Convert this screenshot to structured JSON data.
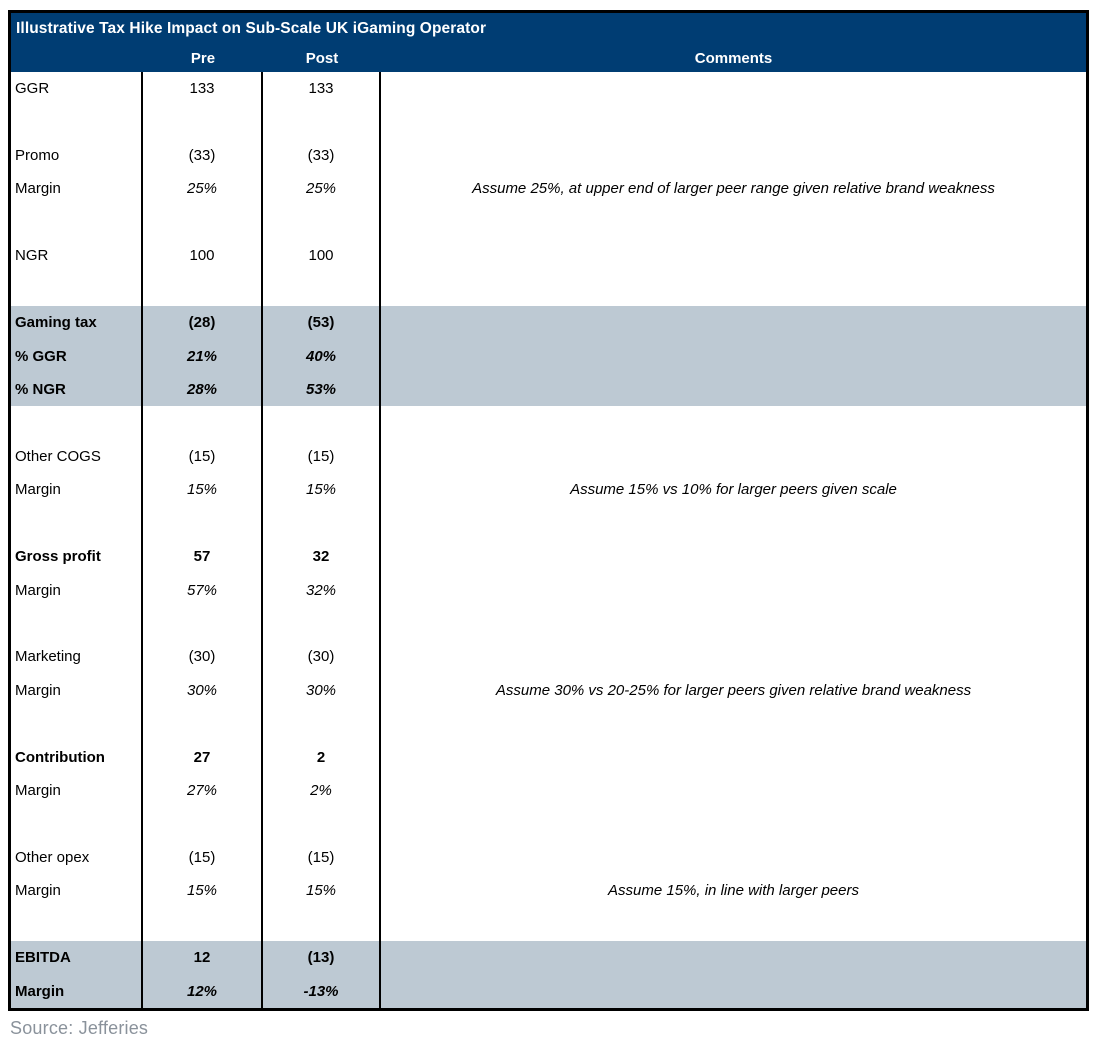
{
  "table": {
    "title": "Illustrative Tax Hike Impact on Sub-Scale UK iGaming Operator",
    "columns": [
      "Pre",
      "Post",
      "Comments"
    ],
    "rows": [
      {
        "label": "GGR",
        "pre": "133",
        "post": "133",
        "comment": "",
        "label_style": "normal",
        "value_style": "normal",
        "highlight": false
      },
      {
        "label": "",
        "pre": "",
        "post": "",
        "comment": "",
        "label_style": "normal",
        "value_style": "normal",
        "highlight": false
      },
      {
        "label": "Promo",
        "pre": "(33)",
        "post": "(33)",
        "comment": "",
        "label_style": "normal",
        "value_style": "normal",
        "highlight": false
      },
      {
        "label": "Margin",
        "pre": "25%",
        "post": "25%",
        "comment": "Assume 25%, at upper end of larger peer range given relative brand weakness",
        "label_style": "normal",
        "value_style": "italic",
        "highlight": false
      },
      {
        "label": "",
        "pre": "",
        "post": "",
        "comment": "",
        "label_style": "normal",
        "value_style": "normal",
        "highlight": false
      },
      {
        "label": "NGR",
        "pre": "100",
        "post": "100",
        "comment": "",
        "label_style": "normal",
        "value_style": "normal",
        "highlight": false
      },
      {
        "label": "",
        "pre": "",
        "post": "",
        "comment": "",
        "label_style": "normal",
        "value_style": "normal",
        "highlight": false
      },
      {
        "label": "Gaming tax",
        "pre": "(28)",
        "post": "(53)",
        "comment": "",
        "label_style": "bold",
        "value_style": "bold",
        "highlight": true
      },
      {
        "label": "% GGR",
        "pre": "21%",
        "post": "40%",
        "comment": "",
        "label_style": "bold",
        "value_style": "bold-italic",
        "highlight": true
      },
      {
        "label": "% NGR",
        "pre": "28%",
        "post": "53%",
        "comment": "",
        "label_style": "bold",
        "value_style": "bold-italic",
        "highlight": true
      },
      {
        "label": "",
        "pre": "",
        "post": "",
        "comment": "",
        "label_style": "normal",
        "value_style": "normal",
        "highlight": false
      },
      {
        "label": "Other COGS",
        "pre": "(15)",
        "post": "(15)",
        "comment": "",
        "label_style": "normal",
        "value_style": "normal",
        "highlight": false
      },
      {
        "label": "Margin",
        "pre": "15%",
        "post": "15%",
        "comment": "Assume 15% vs 10% for larger peers given scale",
        "label_style": "normal",
        "value_style": "italic",
        "highlight": false
      },
      {
        "label": "",
        "pre": "",
        "post": "",
        "comment": "",
        "label_style": "normal",
        "value_style": "normal",
        "highlight": false
      },
      {
        "label": "Gross profit",
        "pre": "57",
        "post": "32",
        "comment": "",
        "label_style": "bold",
        "value_style": "bold",
        "highlight": false
      },
      {
        "label": "Margin",
        "pre": "57%",
        "post": "32%",
        "comment": "",
        "label_style": "normal",
        "value_style": "italic",
        "highlight": false
      },
      {
        "label": "",
        "pre": "",
        "post": "",
        "comment": "",
        "label_style": "normal",
        "value_style": "normal",
        "highlight": false
      },
      {
        "label": "Marketing",
        "pre": "(30)",
        "post": "(30)",
        "comment": "",
        "label_style": "normal",
        "value_style": "normal",
        "highlight": false
      },
      {
        "label": "Margin",
        "pre": "30%",
        "post": "30%",
        "comment": "Assume 30% vs 20-25% for larger peers given relative brand weakness",
        "label_style": "normal",
        "value_style": "italic",
        "highlight": false
      },
      {
        "label": "",
        "pre": "",
        "post": "",
        "comment": "",
        "label_style": "normal",
        "value_style": "normal",
        "highlight": false
      },
      {
        "label": "Contribution",
        "pre": "27",
        "post": "2",
        "comment": "",
        "label_style": "bold",
        "value_style": "bold",
        "highlight": false
      },
      {
        "label": "Margin",
        "pre": "27%",
        "post": "2%",
        "comment": "",
        "label_style": "normal",
        "value_style": "italic",
        "highlight": false
      },
      {
        "label": "",
        "pre": "",
        "post": "",
        "comment": "",
        "label_style": "normal",
        "value_style": "normal",
        "highlight": false
      },
      {
        "label": "Other opex",
        "pre": "(15)",
        "post": "(15)",
        "comment": "",
        "label_style": "normal",
        "value_style": "normal",
        "highlight": false
      },
      {
        "label": "Margin",
        "pre": "15%",
        "post": "15%",
        "comment": "Assume 15%, in line with larger peers",
        "label_style": "normal",
        "value_style": "italic",
        "highlight": false
      },
      {
        "label": "",
        "pre": "",
        "post": "",
        "comment": "",
        "label_style": "normal",
        "value_style": "normal",
        "highlight": false
      },
      {
        "label": "EBITDA",
        "pre": "12",
        "post": "(13)",
        "comment": "",
        "label_style": "bold",
        "value_style": "bold",
        "highlight": true
      },
      {
        "label": "Margin",
        "pre": "12%",
        "post": "-13%",
        "comment": "",
        "label_style": "bold",
        "value_style": "bold-italic",
        "highlight": true
      }
    ],
    "source": "Source: Jefferies"
  },
  "colors": {
    "header_navy": "#003D73",
    "highlight_blue_gray": "#BDC9D3",
    "border_black": "#000000",
    "source_gray": "#8A929B"
  }
}
